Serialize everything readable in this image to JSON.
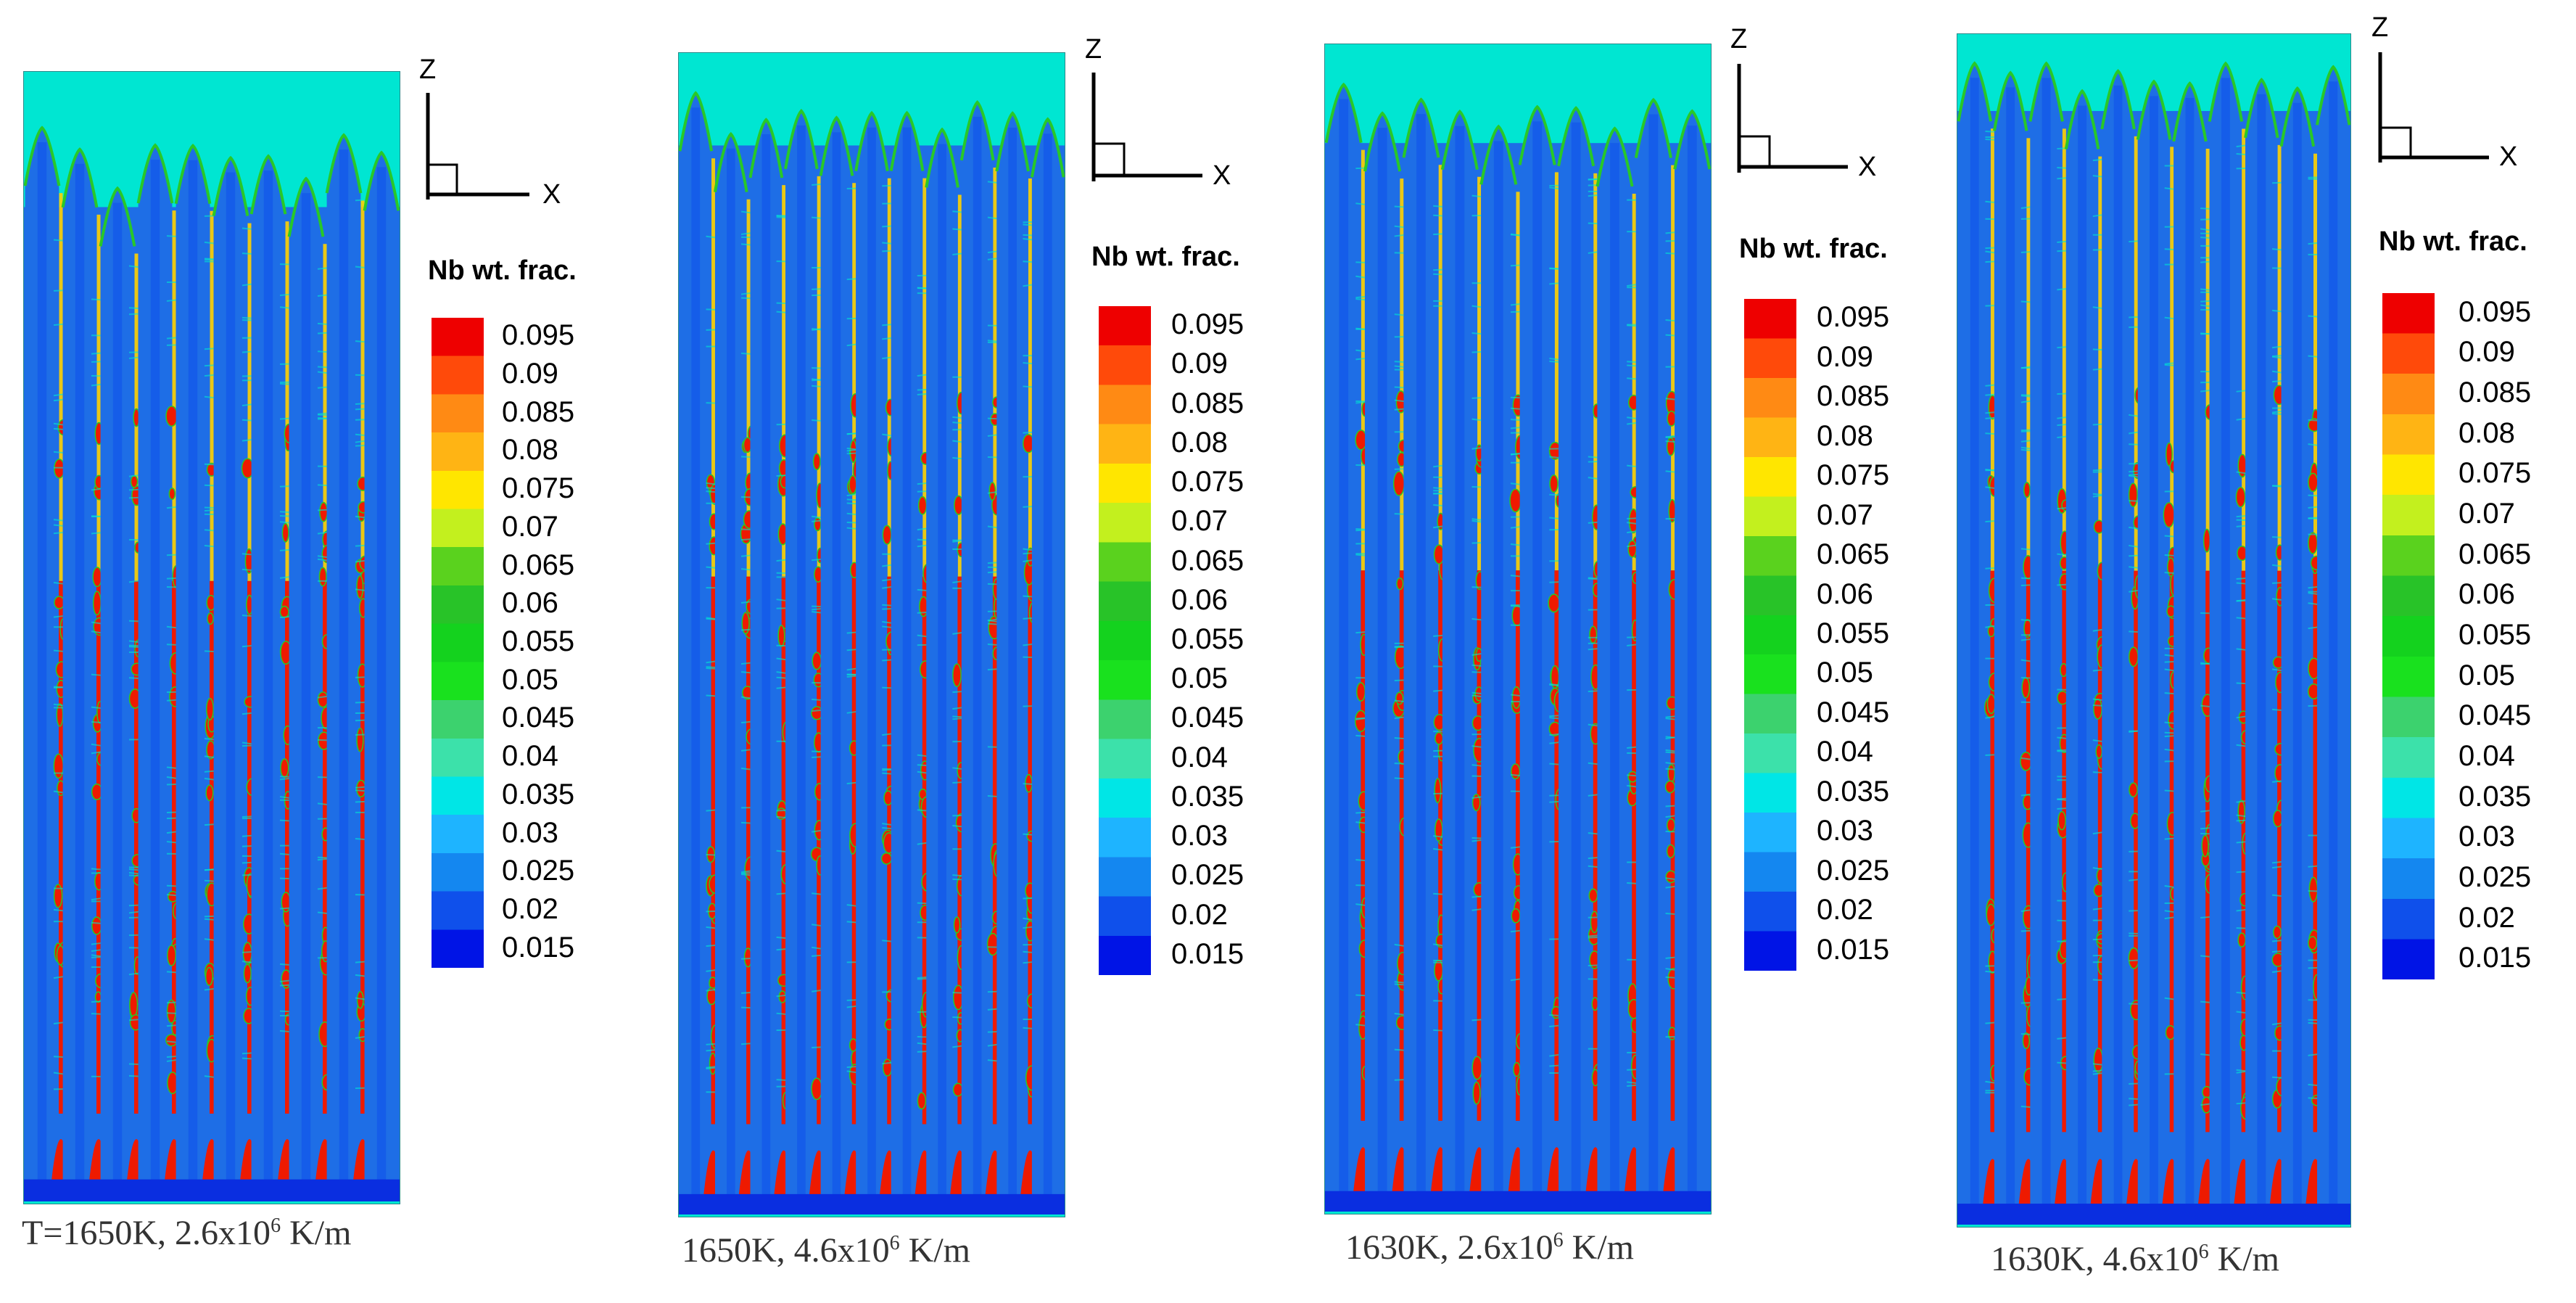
{
  "axis_labels": {
    "z": "Z",
    "x": "X"
  },
  "colorbar": {
    "title": "Nb wt. frac.",
    "levels": [
      "0.095",
      "0.09",
      "0.085",
      "0.08",
      "0.075",
      "0.07",
      "0.065",
      "0.06",
      "0.055",
      "0.05",
      "0.045",
      "0.04",
      "0.035",
      "0.03",
      "0.025",
      "0.02",
      "0.015"
    ],
    "colors": [
      "#ee0000",
      "#ff4a0a",
      "#ff8a14",
      "#ffb414",
      "#ffe600",
      "#c3f01e",
      "#5ad21e",
      "#28c328",
      "#14d21e",
      "#19e11e",
      "#3cd26e",
      "#3ce1aa",
      "#00e6e6",
      "#1eb4ff",
      "#1487f0",
      "#0f50eb",
      "#0014e6"
    ]
  },
  "panels": [
    {
      "caption_prefix": "T=1650K, 2.6x10",
      "caption_exp": "6",
      "caption_suffix": " K/m"
    },
    {
      "caption_prefix": "1650K, 4.6x10",
      "caption_exp": "6",
      "caption_suffix": " K/m"
    },
    {
      "caption_prefix": "1630K, 2.6x10",
      "caption_exp": "6",
      "caption_suffix": " K/m"
    },
    {
      "caption_prefix": "1630K, 4.6x10",
      "caption_exp": "6",
      "caption_suffix": " K/m"
    }
  ],
  "palette": {
    "liquid": "#00e6d2",
    "matrix": "#1e6ee6",
    "core": "#0f50eb",
    "segregation": "#ee1a00",
    "interface": "#28c828",
    "yellow": "#ffd200",
    "base": "#0a2ee0"
  }
}
